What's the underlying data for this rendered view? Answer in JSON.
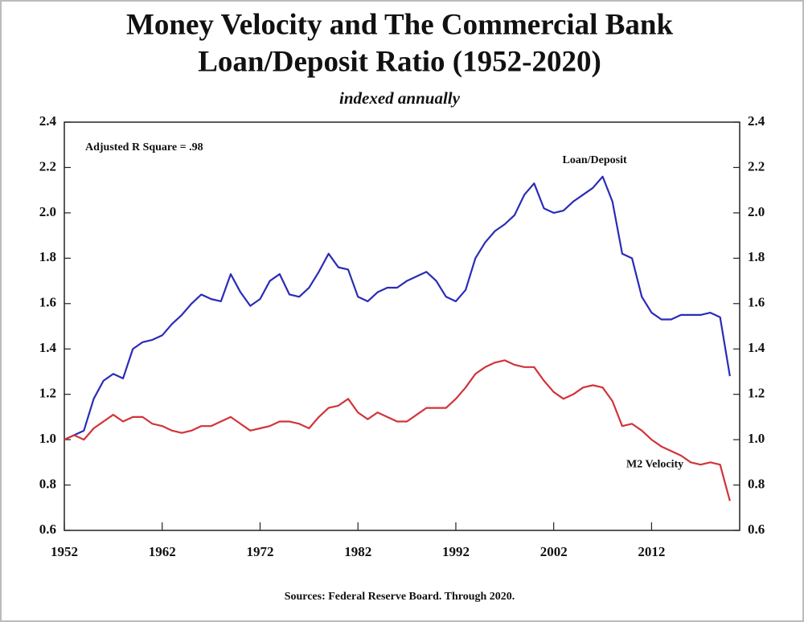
{
  "chart_data": {
    "type": "line",
    "title": [
      "Money Velocity and The Commercial Bank",
      "Loan/Deposit Ratio (1952-2020)"
    ],
    "subtitle": "indexed annually",
    "annotation": "Adjusted R Square = .98",
    "source": "Sources: Federal Reserve Board. Through 2020.",
    "x": [
      1952,
      1953,
      1954,
      1955,
      1956,
      1957,
      1958,
      1959,
      1960,
      1961,
      1962,
      1963,
      1964,
      1965,
      1966,
      1967,
      1968,
      1969,
      1970,
      1971,
      1972,
      1973,
      1974,
      1975,
      1976,
      1977,
      1978,
      1979,
      1980,
      1981,
      1982,
      1983,
      1984,
      1985,
      1986,
      1987,
      1988,
      1989,
      1990,
      1991,
      1992,
      1993,
      1994,
      1995,
      1996,
      1997,
      1998,
      1999,
      2000,
      2001,
      2002,
      2003,
      2004,
      2005,
      2006,
      2007,
      2008,
      2009,
      2010,
      2011,
      2012,
      2013,
      2014,
      2015,
      2016,
      2017,
      2018,
      2019,
      2020
    ],
    "series": [
      {
        "name": "Loan/Deposit",
        "color": "#2b2bb8",
        "values": [
          1.0,
          1.02,
          1.04,
          1.18,
          1.26,
          1.29,
          1.27,
          1.4,
          1.43,
          1.44,
          1.46,
          1.51,
          1.55,
          1.6,
          1.64,
          1.62,
          1.61,
          1.73,
          1.65,
          1.59,
          1.62,
          1.7,
          1.73,
          1.64,
          1.63,
          1.67,
          1.74,
          1.82,
          1.76,
          1.75,
          1.63,
          1.61,
          1.65,
          1.67,
          1.67,
          1.7,
          1.72,
          1.74,
          1.7,
          1.63,
          1.61,
          1.66,
          1.8,
          1.87,
          1.92,
          1.95,
          1.99,
          2.08,
          2.13,
          2.02,
          2.0,
          2.01,
          2.05,
          2.08,
          2.11,
          2.16,
          2.05,
          1.82,
          1.8,
          1.63,
          1.56,
          1.53,
          1.53,
          1.55,
          1.55,
          1.55,
          1.56,
          1.54,
          1.28
        ]
      },
      {
        "name": "M2 Velocity",
        "color": "#d0343a",
        "values": [
          1.0,
          1.02,
          1.0,
          1.05,
          1.08,
          1.11,
          1.08,
          1.1,
          1.1,
          1.07,
          1.06,
          1.04,
          1.03,
          1.04,
          1.06,
          1.06,
          1.08,
          1.1,
          1.07,
          1.04,
          1.05,
          1.06,
          1.08,
          1.08,
          1.07,
          1.05,
          1.1,
          1.14,
          1.15,
          1.18,
          1.12,
          1.09,
          1.12,
          1.1,
          1.08,
          1.08,
          1.11,
          1.14,
          1.14,
          1.14,
          1.18,
          1.23,
          1.29,
          1.32,
          1.34,
          1.35,
          1.33,
          1.32,
          1.32,
          1.26,
          1.21,
          1.18,
          1.2,
          1.23,
          1.24,
          1.23,
          1.17,
          1.06,
          1.07,
          1.04,
          1.0,
          0.97,
          0.95,
          0.93,
          0.9,
          0.89,
          0.9,
          0.89,
          0.73
        ]
      }
    ],
    "xlim": [
      1952,
      2021
    ],
    "xticks": [
      1952,
      1962,
      1972,
      1982,
      1992,
      2002,
      2012
    ],
    "ylim": [
      0.6,
      2.4
    ],
    "yticks": [
      0.6,
      0.8,
      {
        "value": 1,
        "label": "1.0"
      },
      1.2,
      1.4,
      1.6,
      1.8,
      {
        "value": 2,
        "label": "2.0"
      },
      2.2,
      2.4
    ],
    "y2lim": [
      0.6,
      2.4
    ],
    "y2ticks": [
      0.6,
      0.8,
      {
        "value": 1,
        "label": "1.0"
      },
      1.2,
      1.4,
      1.6,
      1.8,
      {
        "value": 2,
        "label": "2.0"
      },
      2.2,
      2.4
    ]
  }
}
